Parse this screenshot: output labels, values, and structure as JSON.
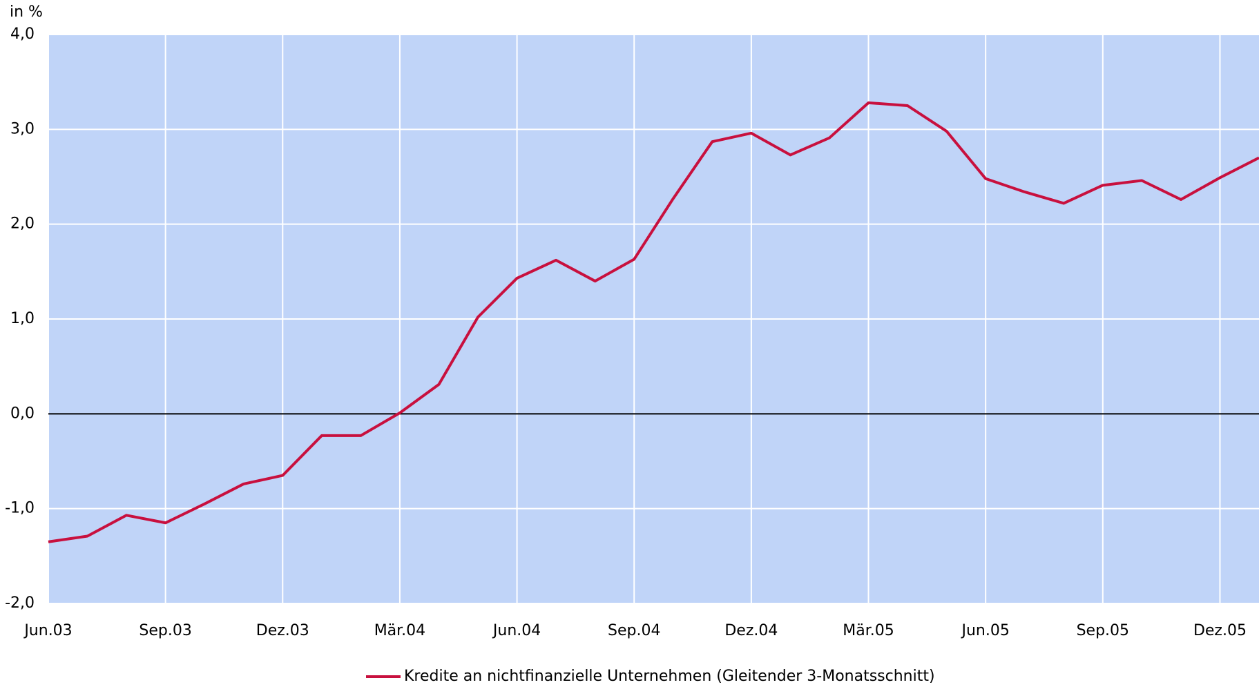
{
  "chart_data": {
    "type": "line",
    "y_label": "in %",
    "categories": [
      "Jun.03",
      null,
      null,
      "Sep.03",
      null,
      null,
      "Dez.03",
      null,
      null,
      "Mär.04",
      null,
      null,
      "Jun.04",
      null,
      null,
      "Sep.04",
      null,
      null,
      "Dez.04",
      null,
      null,
      "Mär.05",
      null,
      null,
      "Jun.05",
      null,
      null,
      "Sep.05",
      null,
      null,
      "Dez.05",
      null
    ],
    "series": [
      {
        "name": "Kredite an nichtfinanzielle Unternehmen (Gleitender 3-Monatsschnitt)",
        "color": "#c8103e",
        "values": [
          -1.35,
          -1.29,
          -1.07,
          -1.15,
          -0.95,
          -0.74,
          -0.65,
          -0.23,
          -0.23,
          0.01,
          0.31,
          1.02,
          1.43,
          1.62,
          1.4,
          1.63,
          2.27,
          2.87,
          2.96,
          2.73,
          2.91,
          3.28,
          3.25,
          2.98,
          2.48,
          2.34,
          2.22,
          2.41,
          2.46,
          2.26,
          2.49,
          2.7
        ]
      }
    ],
    "ylim": [
      -2,
      4
    ],
    "yticks": [
      {
        "value": -2,
        "label": "-2,0"
      },
      {
        "value": -1,
        "label": "-1,0"
      },
      {
        "value": 0,
        "label": "0,0"
      },
      {
        "value": 1,
        "label": "1,0"
      },
      {
        "value": 2,
        "label": "2,0"
      },
      {
        "value": 3,
        "label": "3,0"
      },
      {
        "value": 4,
        "label": "4,0"
      }
    ],
    "grid": true,
    "background": "#c0d4f8",
    "legend": "bottom"
  }
}
